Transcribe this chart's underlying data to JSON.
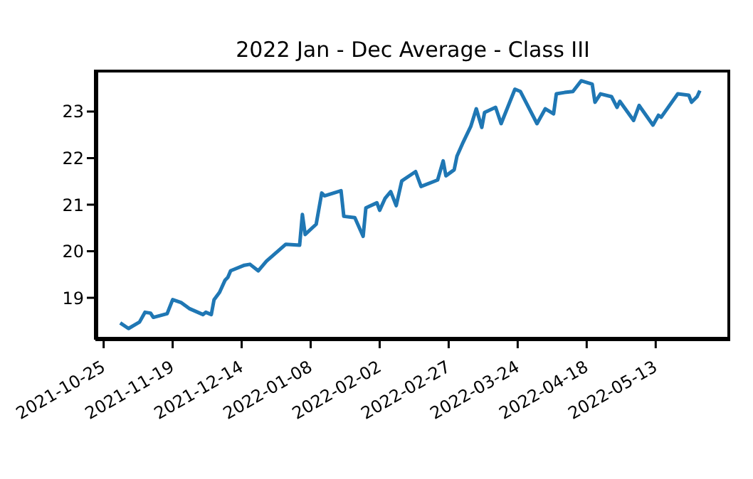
{
  "chart_data": {
    "type": "line",
    "title": "2022 Jan - Dec Average - Class III",
    "x": [
      "2021-10-31",
      "2021-11-03",
      "2021-11-07",
      "2021-11-09",
      "2021-11-11",
      "2021-11-12",
      "2021-11-17",
      "2021-11-19",
      "2021-11-22",
      "2021-11-25",
      "2021-11-30",
      "2021-12-01",
      "2021-12-03",
      "2021-12-04",
      "2021-12-06",
      "2021-12-08",
      "2021-12-09",
      "2021-12-10",
      "2021-12-15",
      "2021-12-17",
      "2021-12-20",
      "2021-12-23",
      "2021-12-30",
      "2022-01-04",
      "2022-01-05",
      "2022-01-06",
      "2022-01-10",
      "2022-01-12",
      "2022-01-13",
      "2022-01-19",
      "2022-01-20",
      "2022-01-24",
      "2022-01-27",
      "2022-01-28",
      "2022-02-01",
      "2022-02-02",
      "2022-02-04",
      "2022-02-06",
      "2022-02-08",
      "2022-02-10",
      "2022-02-15",
      "2022-02-17",
      "2022-02-23",
      "2022-02-25",
      "2022-02-26",
      "2022-03-01",
      "2022-03-02",
      "2022-03-04",
      "2022-03-07",
      "2022-03-09",
      "2022-03-11",
      "2022-03-12",
      "2022-03-16",
      "2022-03-18",
      "2022-03-23",
      "2022-03-25",
      "2022-03-31",
      "2022-04-03",
      "2022-04-06",
      "2022-04-07",
      "2022-04-10",
      "2022-04-13",
      "2022-04-16",
      "2022-04-20",
      "2022-04-21",
      "2022-04-23",
      "2022-04-27",
      "2022-04-29",
      "2022-04-30",
      "2022-05-05",
      "2022-05-07",
      "2022-05-12",
      "2022-05-14",
      "2022-05-15",
      "2022-05-21",
      "2022-05-25",
      "2022-05-26",
      "2022-05-28",
      "2022-05-29"
    ],
    "series": [
      {
        "color": "#1f77b4",
        "values": [
          18.46,
          18.34,
          18.48,
          18.69,
          18.67,
          18.58,
          18.66,
          18.96,
          18.9,
          18.77,
          18.64,
          18.69,
          18.64,
          18.96,
          19.12,
          19.38,
          19.44,
          19.58,
          19.7,
          19.72,
          19.58,
          19.79,
          20.15,
          20.13,
          20.79,
          20.36,
          20.58,
          21.25,
          21.19,
          21.3,
          20.75,
          20.72,
          20.32,
          20.93,
          21.04,
          20.88,
          21.14,
          21.28,
          20.98,
          21.51,
          21.71,
          21.39,
          21.53,
          21.94,
          21.62,
          21.75,
          22.04,
          22.31,
          22.68,
          23.06,
          22.66,
          22.98,
          23.09,
          22.74,
          23.48,
          23.43,
          22.74,
          23.06,
          22.95,
          23.38,
          23.41,
          23.43,
          23.66,
          23.59,
          23.2,
          23.38,
          23.32,
          23.09,
          23.22,
          22.81,
          23.13,
          22.71,
          22.92,
          22.88,
          23.38,
          23.35,
          23.2,
          23.32,
          23.45
        ]
      }
    ],
    "xlim": [
      "2021-10-22",
      "2022-06-09"
    ],
    "xticks": [
      "2021-10-25",
      "2021-11-19",
      "2021-12-14",
      "2022-01-08",
      "2022-02-02",
      "2022-02-27",
      "2022-03-24",
      "2022-04-18",
      "2022-05-13"
    ],
    "ylim": [
      18.1,
      23.9
    ],
    "yticks": [
      19,
      20,
      21,
      22,
      23
    ],
    "grid": false,
    "legend": false,
    "marker": "none",
    "line_style": "solid"
  }
}
